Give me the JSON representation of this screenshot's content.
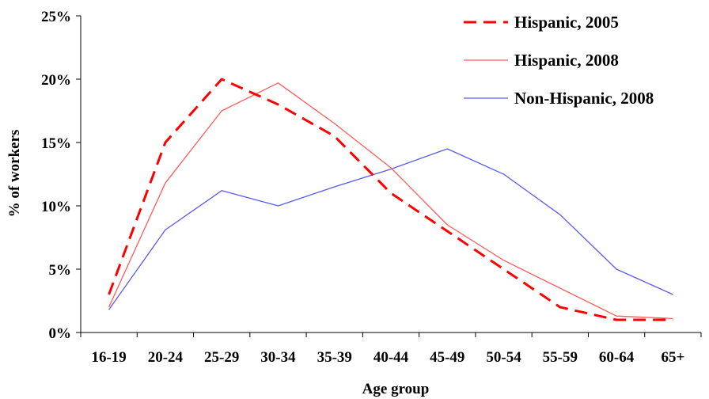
{
  "chart_data": {
    "type": "line",
    "title": "",
    "xlabel": "Age group",
    "ylabel": "% of workers",
    "categories": [
      "16-19",
      "20-24",
      "25-29",
      "30-34",
      "35-39",
      "40-44",
      "45-49",
      "50-54",
      "55-59",
      "60-64",
      "65+"
    ],
    "ylim": [
      0,
      25
    ],
    "yticks": [
      0,
      5,
      10,
      15,
      20,
      25
    ],
    "ytick_labels": [
      "0%",
      "5%",
      "10%",
      "15%",
      "20%",
      "25%"
    ],
    "grid": false,
    "legend_position": "top-right",
    "series": [
      {
        "name": "Hispanic, 2005",
        "values": [
          3.0,
          15.0,
          20.0,
          18.0,
          15.5,
          11.0,
          8.0,
          5.0,
          2.0,
          1.0,
          1.0
        ],
        "color": "#ff0000",
        "style": "dashed"
      },
      {
        "name": "Hispanic, 2008",
        "values": [
          2.0,
          11.8,
          17.5,
          19.7,
          16.5,
          13.0,
          8.5,
          5.7,
          3.5,
          1.3,
          1.1
        ],
        "color": "#ff5a5a",
        "style": "solid"
      },
      {
        "name": "Non-Hispanic, 2008",
        "values": [
          1.8,
          8.1,
          11.2,
          10.0,
          11.5,
          12.9,
          14.5,
          12.5,
          9.3,
          5.0,
          3.0
        ],
        "color": "#5a5af0",
        "style": "solid"
      }
    ]
  }
}
